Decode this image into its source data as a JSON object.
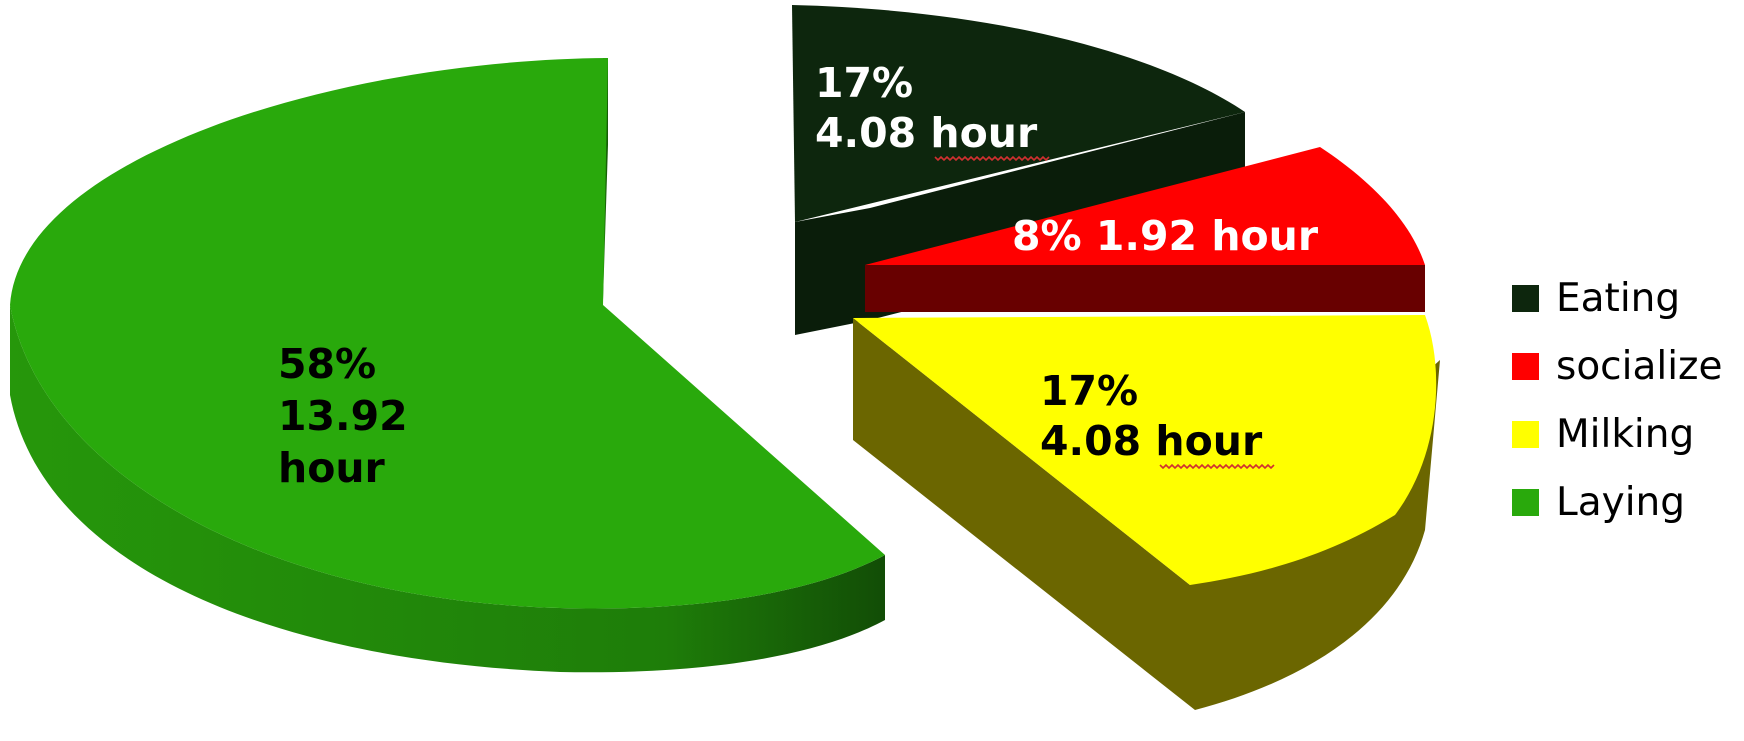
{
  "chart_data": {
    "type": "pie",
    "style": "3d-exploded",
    "title": "",
    "slices": [
      {
        "name": "Eating",
        "percent": 17,
        "hours": 4.08,
        "color": "#0d260d",
        "side_color": "#0a1d0a",
        "label_lines": [
          "17%",
          "4.08 hour"
        ],
        "label_color": "#ffffff"
      },
      {
        "name": "socialize",
        "percent": 8,
        "hours": 1.92,
        "color": "#ff0000",
        "side_color": "#680000",
        "label_lines": [
          "8% 1.92 hour"
        ],
        "label_color": "#ffffff"
      },
      {
        "name": "Milking",
        "percent": 17,
        "hours": 4.08,
        "color": "#ffff00",
        "side_color": "#6b6600",
        "label_lines": [
          "17%",
          "4.08 hour"
        ],
        "label_color": "#000000"
      },
      {
        "name": "Laying",
        "percent": 58,
        "hours": 13.92,
        "color": "#29a90c",
        "side_color": "#1e7a09",
        "label_lines": [
          "58%",
          "13.92",
          "hour"
        ],
        "label_color": "#000000"
      }
    ],
    "legend": {
      "position": "right",
      "entries": [
        "Eating",
        "socialize",
        "Milking",
        "Laying"
      ]
    },
    "unit": "hour"
  }
}
